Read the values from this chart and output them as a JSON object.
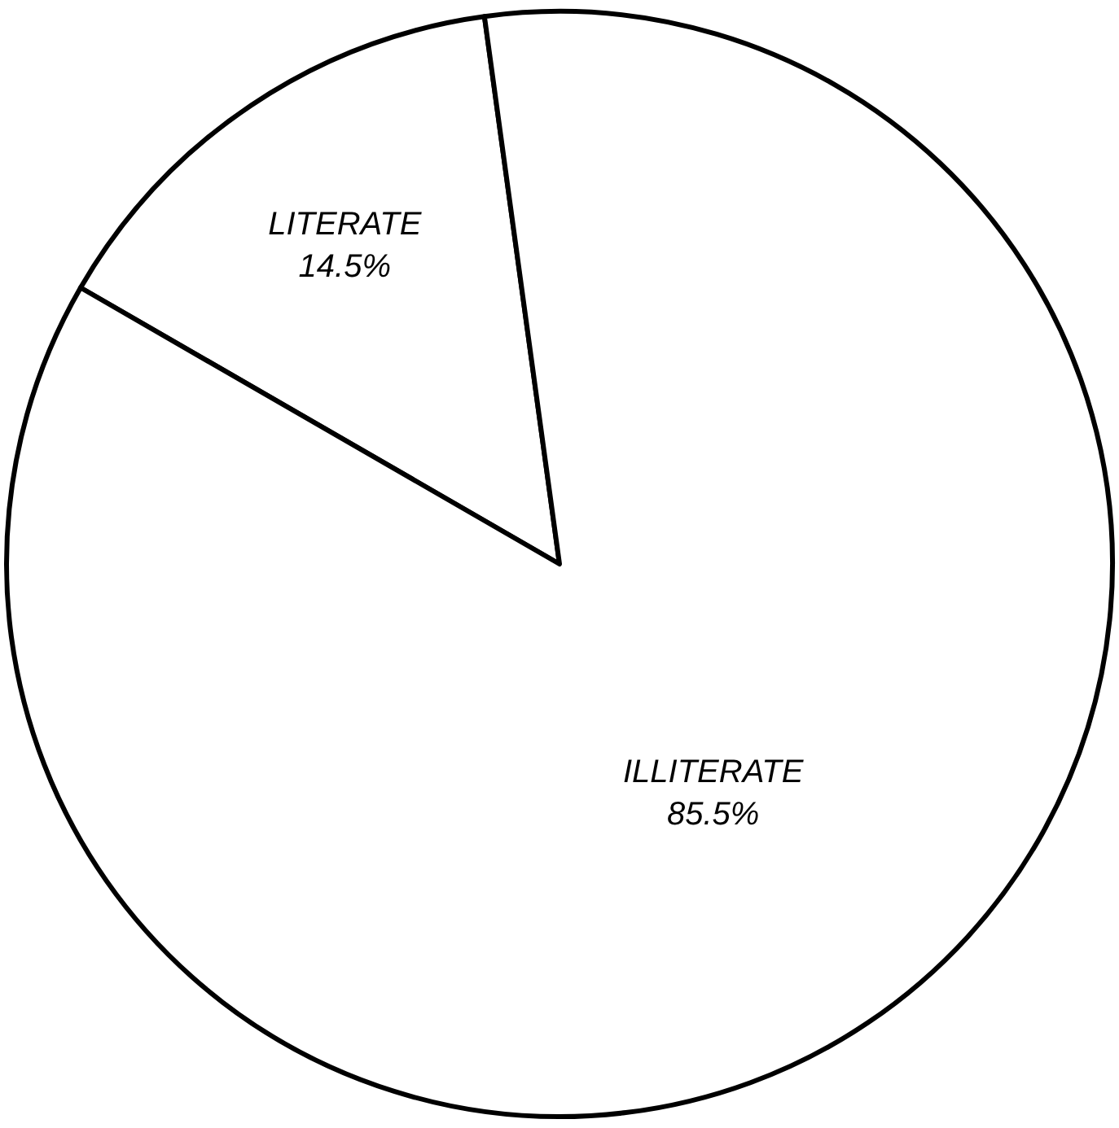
{
  "chart_data": {
    "type": "pie",
    "categories": [
      "LITERATE",
      "ILLITERATE"
    ],
    "values": [
      14.5,
      85.5
    ],
    "value_labels": [
      "14.5%",
      "85.5%"
    ],
    "colors": [
      "#ffffff",
      "#ffffff"
    ]
  }
}
